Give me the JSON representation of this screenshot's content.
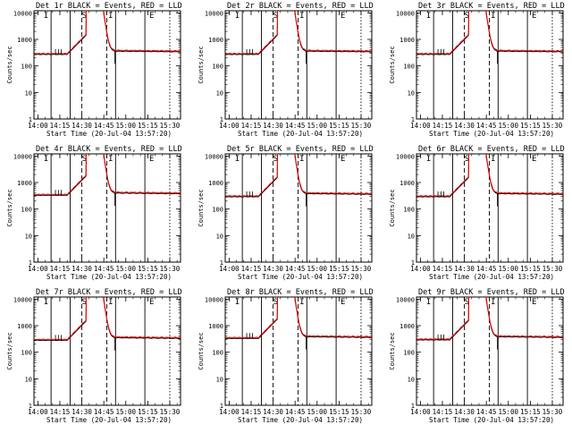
{
  "common": {
    "ylabel": "Counts/sec",
    "xlabel": "Start Time (20-Jul-04 13:57:20)",
    "x_ticks": [
      "14:00",
      "14:15",
      "14:30",
      "14:45",
      "15:00",
      "15:15",
      "15:30"
    ],
    "y_ticks": [
      "1",
      "10",
      "100",
      "1000",
      "10000"
    ],
    "marker_labels": [
      "I",
      "S",
      "I",
      "E"
    ],
    "colors": {
      "events": "#000000",
      "lld": "#ff0000",
      "axes": "#000000",
      "background": "#ffffff"
    }
  },
  "chart_data": [
    {
      "type": "line",
      "title": "Det  1r BLACK = Events, RED = LLD",
      "xlabel": "Start Time (20-Jul-04 13:57:20)",
      "ylabel": "Counts/sec",
      "y_scale": "log",
      "ylim": [
        1,
        12000
      ],
      "xlim": [
        "13:57:20",
        "15:37:20"
      ],
      "grid": false,
      "baseline_before": 270,
      "baseline_after": 360,
      "series": [
        {
          "name": "Events",
          "color": "#000000"
        },
        {
          "name": "LLD",
          "color": "#ff0000"
        }
      ]
    },
    {
      "type": "line",
      "title": "Det  2r BLACK = Events, RED = LLD",
      "xlabel": "Start Time (20-Jul-04 13:57:20)",
      "ylabel": "Counts/sec",
      "y_scale": "log",
      "ylim": [
        1,
        12000
      ],
      "xlim": [
        "13:57:20",
        "15:37:20"
      ],
      "grid": false,
      "baseline_before": 270,
      "baseline_after": 360,
      "series": [
        {
          "name": "Events",
          "color": "#000000"
        },
        {
          "name": "LLD",
          "color": "#ff0000"
        }
      ]
    },
    {
      "type": "line",
      "title": "Det  3r BLACK = Events, RED = LLD",
      "xlabel": "Start Time (20-Jul-04 13:57:20)",
      "ylabel": "Counts/sec",
      "y_scale": "log",
      "ylim": [
        1,
        12000
      ],
      "xlim": [
        "13:57:20",
        "15:37:20"
      ],
      "grid": false,
      "baseline_before": 270,
      "baseline_after": 360,
      "series": [
        {
          "name": "Events",
          "color": "#000000"
        },
        {
          "name": "LLD",
          "color": "#ff0000"
        }
      ]
    },
    {
      "type": "line",
      "title": "Det  4r BLACK = Events, RED = LLD",
      "xlabel": "Start Time (20-Jul-04 13:57:20)",
      "ylabel": "Counts/sec",
      "y_scale": "log",
      "ylim": [
        1,
        12000
      ],
      "xlim": [
        "13:57:20",
        "15:37:20"
      ],
      "grid": false,
      "baseline_before": 330,
      "baseline_after": 400,
      "series": [
        {
          "name": "Events",
          "color": "#000000"
        },
        {
          "name": "LLD",
          "color": "#ff0000"
        }
      ]
    },
    {
      "type": "line",
      "title": "Det  5r BLACK = Events, RED = LLD",
      "xlabel": "Start Time (20-Jul-04 13:57:20)",
      "ylabel": "Counts/sec",
      "y_scale": "log",
      "ylim": [
        1,
        12000
      ],
      "xlim": [
        "13:57:20",
        "15:37:20"
      ],
      "grid": false,
      "baseline_before": 290,
      "baseline_after": 380,
      "series": [
        {
          "name": "Events",
          "color": "#000000"
        },
        {
          "name": "LLD",
          "color": "#ff0000"
        }
      ]
    },
    {
      "type": "line",
      "title": "Det  6r BLACK = Events, RED = LLD",
      "xlabel": "Start Time (20-Jul-04 13:57:20)",
      "ylabel": "Counts/sec",
      "y_scale": "log",
      "ylim": [
        1,
        12000
      ],
      "xlim": [
        "13:57:20",
        "15:37:20"
      ],
      "grid": false,
      "baseline_before": 290,
      "baseline_after": 380,
      "series": [
        {
          "name": "Events",
          "color": "#000000"
        },
        {
          "name": "LLD",
          "color": "#ff0000"
        }
      ]
    },
    {
      "type": "line",
      "title": "Det  7r BLACK = Events, RED = LLD",
      "xlabel": "Start Time (20-Jul-04 13:57:20)",
      "ylabel": "Counts/sec",
      "y_scale": "log",
      "ylim": [
        1,
        12000
      ],
      "xlim": [
        "13:57:20",
        "15:37:20"
      ],
      "grid": false,
      "baseline_before": 280,
      "baseline_after": 350,
      "series": [
        {
          "name": "Events",
          "color": "#000000"
        },
        {
          "name": "LLD",
          "color": "#ff0000"
        }
      ]
    },
    {
      "type": "line",
      "title": "Det  8r BLACK = Events, RED = LLD",
      "xlabel": "Start Time (20-Jul-04 13:57:20)",
      "ylabel": "Counts/sec",
      "y_scale": "log",
      "ylim": [
        1,
        12000
      ],
      "xlim": [
        "13:57:20",
        "15:37:20"
      ],
      "grid": false,
      "baseline_before": 330,
      "baseline_after": 380,
      "series": [
        {
          "name": "Events",
          "color": "#000000"
        },
        {
          "name": "LLD",
          "color": "#ff0000"
        }
      ]
    },
    {
      "type": "line",
      "title": "Det  9r BLACK = Events, RED = LLD",
      "xlabel": "Start Time (20-Jul-04 13:57:20)",
      "ylabel": "Counts/sec",
      "y_scale": "log",
      "ylim": [
        1,
        12000
      ],
      "xlim": [
        "13:57:20",
        "15:37:20"
      ],
      "grid": false,
      "baseline_before": 290,
      "baseline_after": 380,
      "series": [
        {
          "name": "Events",
          "color": "#000000"
        },
        {
          "name": "LLD",
          "color": "#ff0000"
        }
      ]
    }
  ]
}
